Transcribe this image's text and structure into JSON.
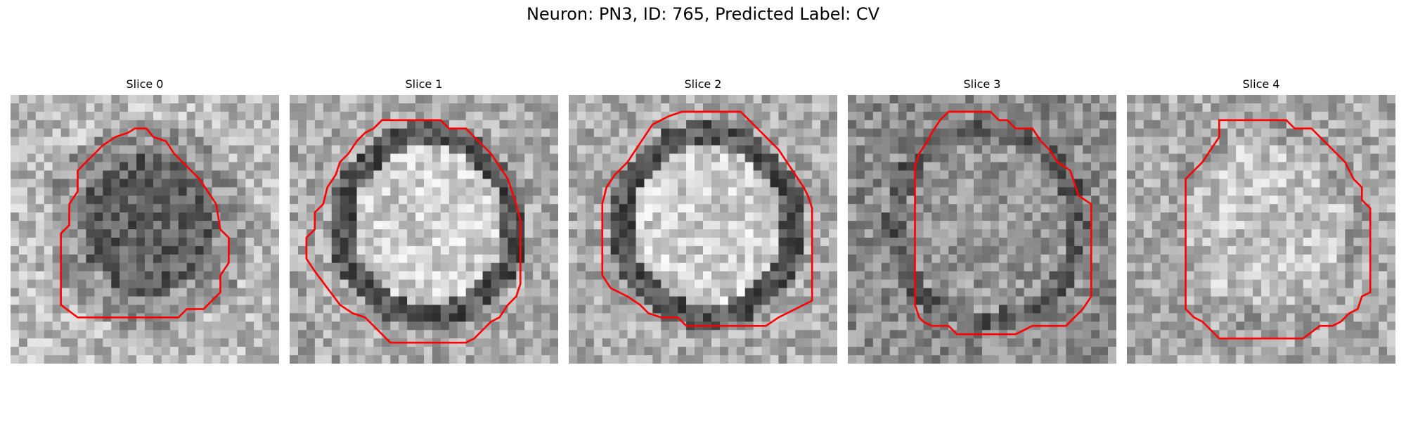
{
  "title": "Neuron: PN3, ID: 765, Predicted Label: CV",
  "panels": [
    {
      "label": "Slice 0",
      "interior": "dark"
    },
    {
      "label": "Slice 1",
      "interior": "bright"
    },
    {
      "label": "Slice 2",
      "interior": "bright"
    },
    {
      "label": "Slice 3",
      "interior": "mid"
    },
    {
      "label": "Slice 4",
      "interior": "light"
    }
  ],
  "contour_color": "#ff0000",
  "colormap": "grayscale"
}
